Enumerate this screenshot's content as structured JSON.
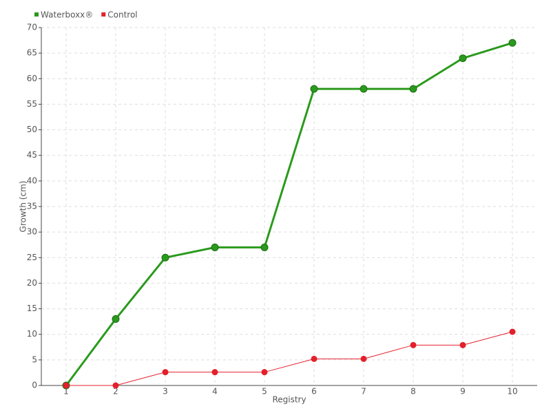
{
  "chart_data": {
    "type": "line",
    "x_label": "Registry",
    "y_label": "Growth (cm)",
    "categories": [
      "1",
      "2",
      "3",
      "4",
      "5",
      "6",
      "7",
      "8",
      "9",
      "10"
    ],
    "series": [
      {
        "name": "Waterboxx®",
        "color": "#2a9a1c",
        "values": [
          0,
          13,
          25,
          27,
          27,
          58,
          58,
          58,
          64,
          67
        ]
      },
      {
        "name": "Control",
        "color": "#e3202b",
        "values": [
          0,
          0,
          2.6,
          2.6,
          2.6,
          5.2,
          5.2,
          7.9,
          7.9,
          10.5
        ]
      }
    ],
    "ylim": [
      0,
      70
    ],
    "yticks": [
      0,
      5,
      10,
      15,
      20,
      25,
      30,
      35,
      40,
      45,
      50,
      55,
      60,
      65,
      70
    ],
    "grid": true,
    "legend": "top-left"
  }
}
